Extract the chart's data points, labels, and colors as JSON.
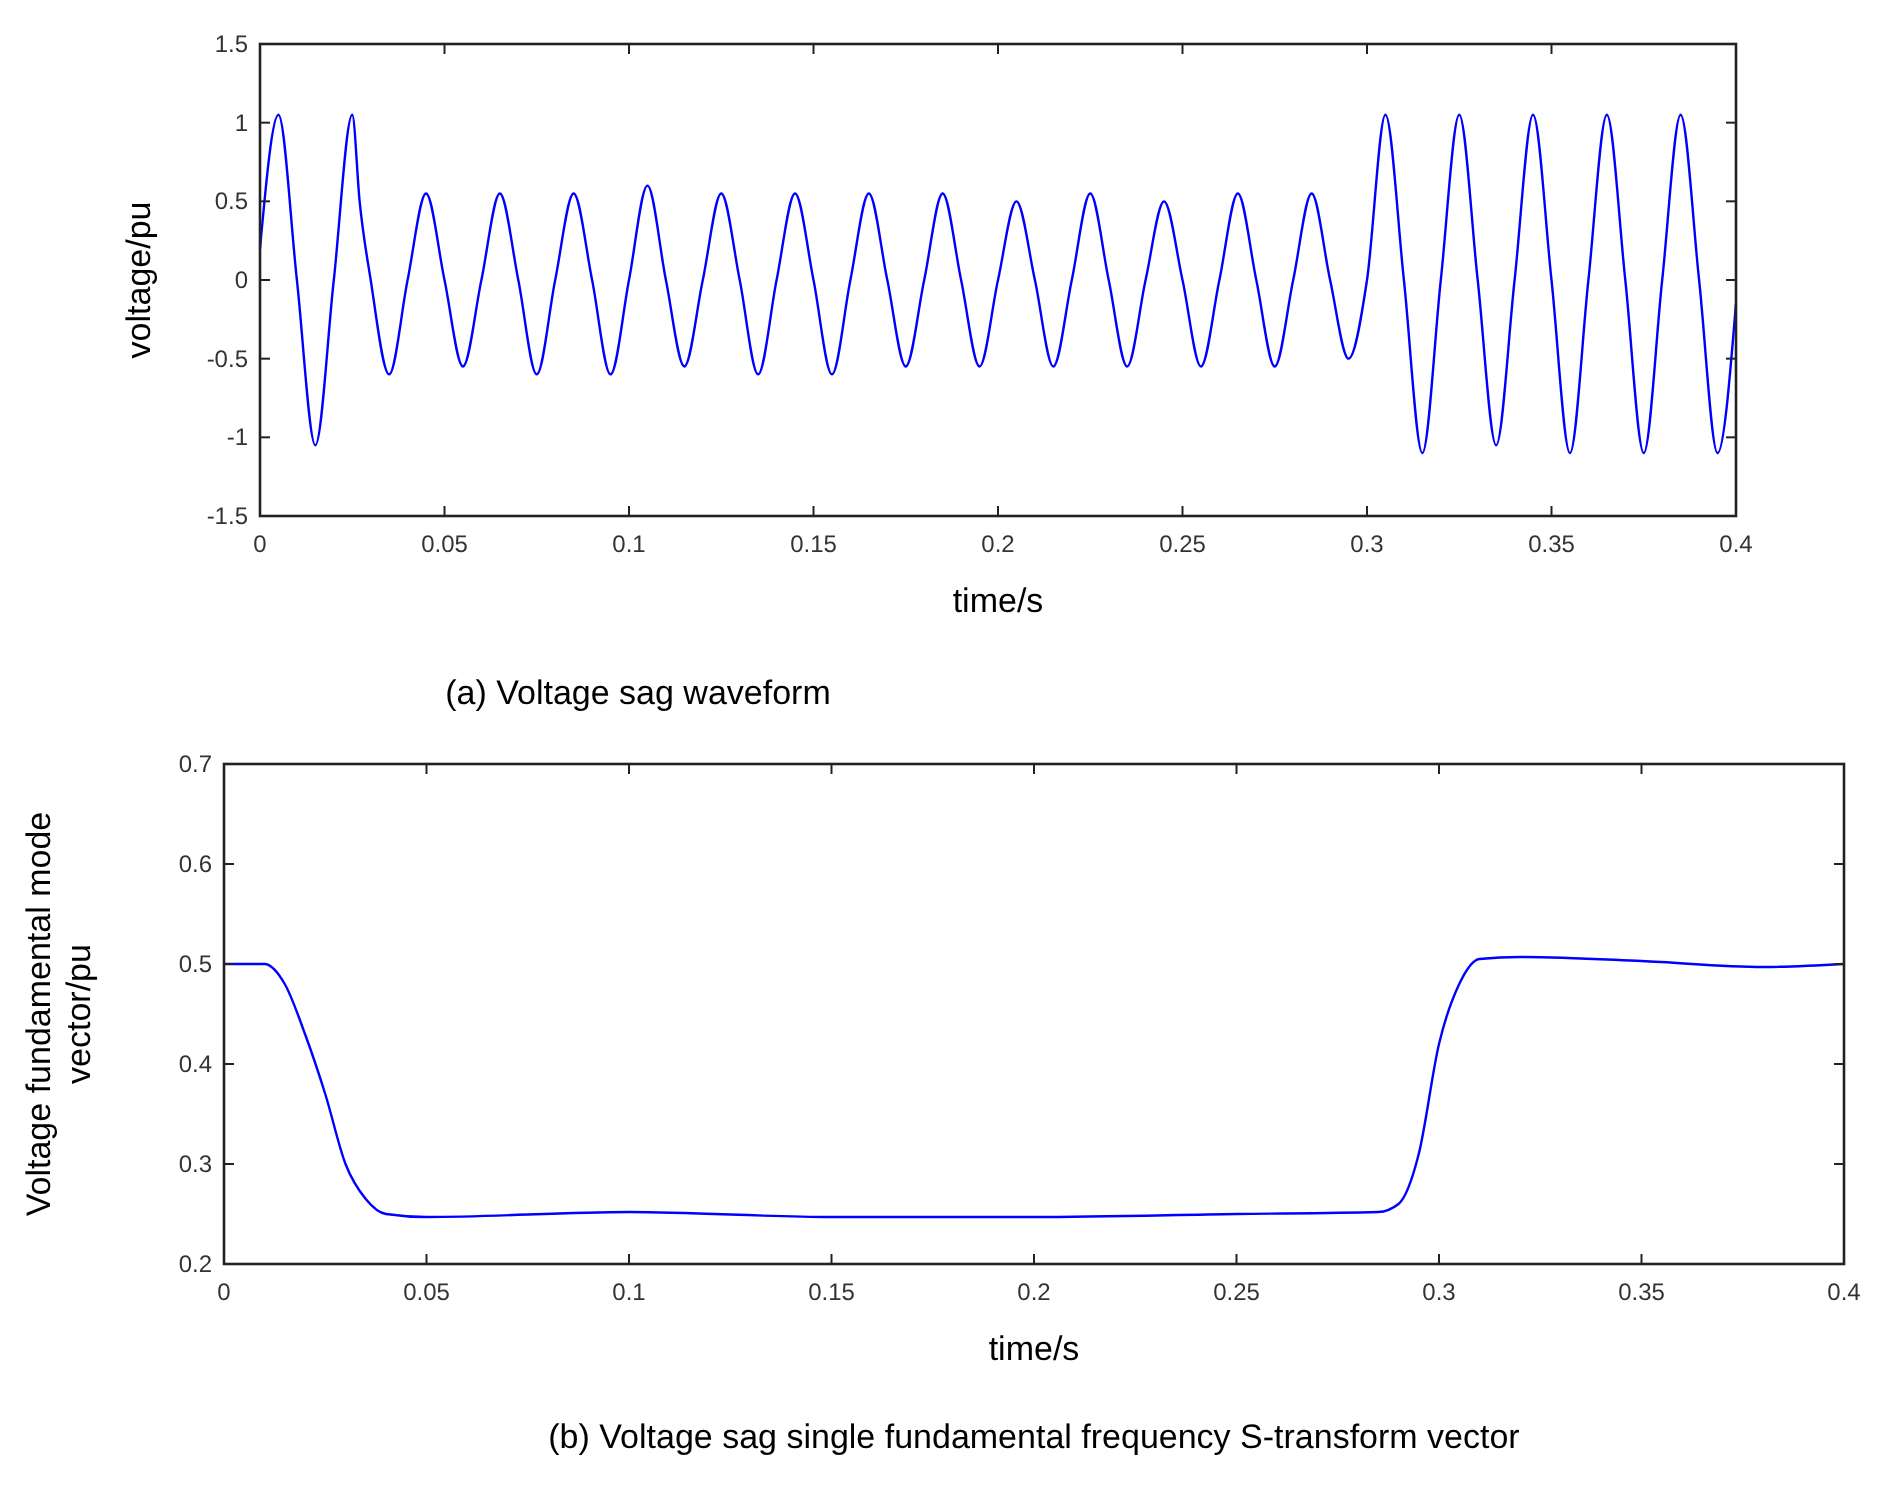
{
  "chart_data": [
    {
      "type": "line",
      "title": "(a) Voltage sag waveform",
      "xlabel": "time/s",
      "ylabel": "voltage/pu",
      "xlim": [
        0,
        0.4
      ],
      "ylim": [
        -1.5,
        1.5
      ],
      "xticks": [
        0,
        0.05,
        0.1,
        0.15,
        0.2,
        0.25,
        0.3,
        0.35,
        0.4
      ],
      "yticks": [
        -1.5,
        -1,
        -0.5,
        0,
        0.5,
        1,
        1.5
      ],
      "grid": false,
      "series": [
        {
          "color": "#0000ff",
          "x": [
            0,
            0.005,
            0.01,
            0.015,
            0.02,
            0.025,
            0.027,
            0.03,
            0.035,
            0.04,
            0.045,
            0.05,
            0.055,
            0.06,
            0.065,
            0.07,
            0.075,
            0.08,
            0.085,
            0.09,
            0.095,
            0.1,
            0.105,
            0.11,
            0.115,
            0.12,
            0.125,
            0.13,
            0.135,
            0.14,
            0.145,
            0.15,
            0.155,
            0.16,
            0.165,
            0.17,
            0.175,
            0.18,
            0.185,
            0.19,
            0.195,
            0.2,
            0.205,
            0.21,
            0.215,
            0.22,
            0.225,
            0.23,
            0.235,
            0.24,
            0.245,
            0.25,
            0.255,
            0.26,
            0.265,
            0.27,
            0.275,
            0.28,
            0.285,
            0.29,
            0.295,
            0.3,
            0.305,
            0.31,
            0.315,
            0.32,
            0.325,
            0.33,
            0.335,
            0.34,
            0.345,
            0.35,
            0.355,
            0.36,
            0.365,
            0.37,
            0.375,
            0.38,
            0.385,
            0.39,
            0.395,
            0.4
          ],
          "values": [
            0.2,
            1.05,
            0,
            -1.05,
            0,
            1.05,
            0.5,
            0,
            -0.6,
            0,
            0.55,
            0,
            -0.55,
            0,
            0.55,
            0,
            -0.6,
            0,
            0.55,
            0,
            -0.6,
            0,
            0.6,
            0,
            -0.55,
            0,
            0.55,
            0,
            -0.6,
            0,
            0.55,
            0,
            -0.6,
            0,
            0.55,
            0,
            -0.55,
            0,
            0.55,
            0,
            -0.55,
            0,
            0.5,
            0,
            -0.55,
            0,
            0.55,
            0,
            -0.55,
            0,
            0.5,
            0,
            -0.55,
            0,
            0.55,
            0,
            -0.55,
            0,
            0.55,
            0,
            -0.5,
            0,
            1.05,
            0,
            -1.1,
            0,
            1.05,
            0,
            -1.05,
            0,
            1.05,
            0,
            -1.1,
            0,
            1.05,
            0,
            -1.1,
            0,
            1.05,
            0,
            -1.1,
            -0.15
          ]
        }
      ]
    },
    {
      "type": "line",
      "title": "(b) Voltage sag single fundamental frequency S-transform vector",
      "xlabel": "time/s",
      "ylabel": "Voltage fundamental mode vector/pu",
      "xlim": [
        0,
        0.4
      ],
      "ylim": [
        0.2,
        0.7
      ],
      "xticks": [
        0,
        0.05,
        0.1,
        0.15,
        0.2,
        0.25,
        0.3,
        0.35,
        0.4
      ],
      "yticks": [
        0.2,
        0.3,
        0.4,
        0.5,
        0.6,
        0.7
      ],
      "grid": false,
      "series": [
        {
          "color": "#0000ff",
          "x": [
            0,
            0.01,
            0.015,
            0.02,
            0.025,
            0.03,
            0.035,
            0.04,
            0.05,
            0.1,
            0.15,
            0.2,
            0.25,
            0.285,
            0.29,
            0.295,
            0.3,
            0.305,
            0.31,
            0.32,
            0.35,
            0.38,
            0.4
          ],
          "values": [
            0.5,
            0.5,
            0.48,
            0.43,
            0.37,
            0.3,
            0.265,
            0.25,
            0.247,
            0.252,
            0.247,
            0.247,
            0.25,
            0.252,
            0.26,
            0.31,
            0.42,
            0.48,
            0.505,
            0.507,
            0.503,
            0.497,
            0.5
          ]
        }
      ]
    }
  ]
}
